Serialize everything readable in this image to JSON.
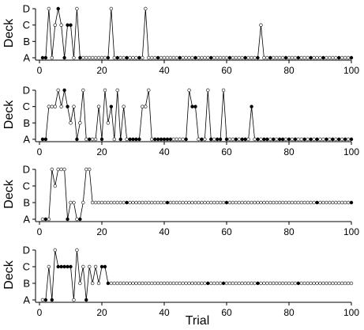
{
  "chart_data": [
    {
      "type": "line",
      "ylabel": "Deck",
      "xlabel": "",
      "xlim": [
        0,
        100
      ],
      "xticks": [
        0,
        20,
        40,
        60,
        80,
        100
      ],
      "y_categories": [
        "A",
        "B",
        "C",
        "D"
      ],
      "x": [
        1,
        2,
        3,
        4,
        5,
        6,
        7,
        8,
        9,
        10,
        11,
        12,
        13,
        14,
        15,
        16,
        17,
        18,
        19,
        20,
        21,
        22,
        23,
        24,
        25,
        26,
        27,
        28,
        29,
        30,
        31,
        32,
        33,
        34,
        35,
        36,
        37,
        38,
        39,
        40,
        41,
        42,
        43,
        44,
        45,
        46,
        47,
        48,
        49,
        50,
        51,
        52,
        53,
        54,
        55,
        56,
        57,
        58,
        59,
        60,
        61,
        62,
        63,
        64,
        65,
        66,
        67,
        68,
        69,
        70,
        71,
        72,
        73,
        74,
        75,
        76,
        77,
        78,
        79,
        80,
        81,
        82,
        83,
        84,
        85,
        86,
        87,
        88,
        89,
        90,
        91,
        92,
        93,
        94,
        95,
        96,
        97,
        98,
        99,
        100
      ],
      "deck": [
        "A",
        "A",
        "D",
        "A",
        "C",
        "D",
        "C",
        "A",
        "C",
        "C",
        "A",
        "D",
        "A",
        "A",
        "A",
        "A",
        "A",
        "A",
        "A",
        "A",
        "A",
        "A",
        "D",
        "A",
        "A",
        "A",
        "A",
        "A",
        "A",
        "A",
        "A",
        "A",
        "A",
        "D",
        "A",
        "A",
        "A",
        "A",
        "A",
        "A",
        "A",
        "A",
        "A",
        "A",
        "A",
        "A",
        "A",
        "A",
        "A",
        "A",
        "A",
        "A",
        "A",
        "A",
        "A",
        "A",
        "A",
        "A",
        "A",
        "A",
        "A",
        "A",
        "A",
        "A",
        "A",
        "A",
        "A",
        "A",
        "A",
        "A",
        "C",
        "A",
        "A",
        "A",
        "A",
        "A",
        "A",
        "A",
        "A",
        "A",
        "A",
        "A",
        "A",
        "A",
        "A",
        "A",
        "A",
        "A",
        "A",
        "A",
        "A",
        "A",
        "A",
        "A",
        "A",
        "A",
        "A",
        "A",
        "A",
        "A"
      ],
      "reward": [
        1,
        1,
        0,
        0,
        0,
        1,
        0,
        1,
        1,
        1,
        0,
        0,
        1,
        0,
        0,
        0,
        0,
        0,
        0,
        0,
        0,
        1,
        0,
        0,
        1,
        0,
        0,
        1,
        0,
        0,
        0,
        1,
        0,
        0,
        0,
        0,
        0,
        1,
        0,
        0,
        0,
        0,
        0,
        0,
        1,
        0,
        0,
        0,
        0,
        1,
        0,
        0,
        0,
        0,
        1,
        0,
        0,
        0,
        0,
        0,
        1,
        0,
        0,
        0,
        0,
        1,
        0,
        0,
        0,
        1,
        0,
        0,
        0,
        1,
        0,
        0,
        0,
        0,
        1,
        0,
        0,
        0,
        1,
        0,
        0,
        0,
        1,
        0,
        0,
        0,
        1,
        0,
        0,
        0,
        0,
        1,
        0,
        0,
        0,
        1
      ]
    },
    {
      "type": "line",
      "ylabel": "Deck",
      "xlabel": "",
      "xlim": [
        0,
        100
      ],
      "xticks": [
        0,
        20,
        40,
        60,
        80,
        100
      ],
      "y_categories": [
        "A",
        "B",
        "C",
        "D"
      ],
      "x": [
        1,
        2,
        3,
        4,
        5,
        6,
        7,
        8,
        9,
        10,
        11,
        12,
        13,
        14,
        15,
        16,
        17,
        18,
        19,
        20,
        21,
        22,
        23,
        24,
        25,
        26,
        27,
        28,
        29,
        30,
        31,
        32,
        33,
        34,
        35,
        36,
        37,
        38,
        39,
        40,
        41,
        42,
        43,
        44,
        45,
        46,
        47,
        48,
        49,
        50,
        51,
        52,
        53,
        54,
        55,
        56,
        57,
        58,
        59,
        60,
        61,
        62,
        63,
        64,
        65,
        66,
        67,
        68,
        69,
        70,
        71,
        72,
        73,
        74,
        75,
        76,
        77,
        78,
        79,
        80,
        81,
        82,
        83,
        84,
        85,
        86,
        87,
        88,
        89,
        90,
        91,
        92,
        93,
        94,
        95,
        96,
        97,
        98,
        99,
        100
      ],
      "deck": [
        "A",
        "A",
        "C",
        "C",
        "C",
        "D",
        "C",
        "D",
        "C",
        "B",
        "C",
        "A",
        "B",
        "D",
        "A",
        "A",
        "A",
        "A",
        "C",
        "A",
        "D",
        "B",
        "C",
        "A",
        "D",
        "A",
        "C",
        "A",
        "A",
        "A",
        "A",
        "A",
        "C",
        "C",
        "D",
        "A",
        "A",
        "A",
        "A",
        "A",
        "A",
        "A",
        "A",
        "A",
        "A",
        "A",
        "A",
        "D",
        "C",
        "C",
        "A",
        "A",
        "A",
        "D",
        "A",
        "A",
        "A",
        "A",
        "D",
        "A",
        "A",
        "A",
        "A",
        "A",
        "A",
        "A",
        "A",
        "C",
        "A",
        "A",
        "A",
        "A",
        "A",
        "A",
        "A",
        "A",
        "A",
        "A",
        "A",
        "A",
        "A",
        "A",
        "A",
        "A",
        "A",
        "A",
        "A",
        "A",
        "A",
        "A",
        "A",
        "A",
        "A",
        "A",
        "A",
        "A",
        "A",
        "A",
        "A",
        "A"
      ],
      "reward": [
        1,
        1,
        0,
        0,
        0,
        0,
        0,
        1,
        1,
        0,
        0,
        1,
        0,
        0,
        0,
        1,
        0,
        0,
        0,
        1,
        0,
        0,
        1,
        0,
        0,
        1,
        0,
        0,
        1,
        1,
        1,
        1,
        0,
        0,
        0,
        0,
        1,
        1,
        1,
        1,
        1,
        1,
        0,
        0,
        0,
        0,
        1,
        0,
        1,
        1,
        0,
        1,
        0,
        0,
        1,
        0,
        1,
        1,
        0,
        1,
        0,
        0,
        1,
        0,
        1,
        1,
        0,
        1,
        0,
        1,
        0,
        1,
        1,
        0,
        1,
        0,
        1,
        1,
        0,
        1,
        0,
        1,
        0,
        0,
        1,
        0,
        1,
        0,
        1,
        0,
        0,
        1,
        0,
        1,
        0,
        1,
        0,
        1,
        0,
        1
      ]
    },
    {
      "type": "line",
      "ylabel": "Deck",
      "xlabel": "",
      "xlim": [
        0,
        100
      ],
      "xticks": [
        0,
        20,
        40,
        60,
        80,
        100
      ],
      "y_categories": [
        "A",
        "B",
        "C",
        "D"
      ],
      "x": [
        1,
        2,
        3,
        4,
        5,
        6,
        7,
        8,
        9,
        10,
        11,
        12,
        13,
        14,
        15,
        16,
        17,
        18,
        19,
        20,
        21,
        22,
        23,
        24,
        25,
        26,
        27,
        28,
        29,
        30,
        31,
        32,
        33,
        34,
        35,
        36,
        37,
        38,
        39,
        40,
        41,
        42,
        43,
        44,
        45,
        46,
        47,
        48,
        49,
        50,
        51,
        52,
        53,
        54,
        55,
        56,
        57,
        58,
        59,
        60,
        61,
        62,
        63,
        64,
        65,
        66,
        67,
        68,
        69,
        70,
        71,
        72,
        73,
        74,
        75,
        76,
        77,
        78,
        79,
        80,
        81,
        82,
        83,
        84,
        85,
        86,
        87,
        88,
        89,
        90,
        91,
        92,
        93,
        94,
        95,
        96,
        97,
        98,
        99,
        100
      ],
      "deck": [
        "A",
        "A",
        "A",
        "D",
        "C",
        "D",
        "D",
        "D",
        "A",
        "B",
        "B",
        "A",
        "A",
        "B",
        "D",
        "D",
        "B",
        "B",
        "B",
        "B",
        "B",
        "B",
        "B",
        "B",
        "B",
        "B",
        "B",
        "B",
        "B",
        "B",
        "B",
        "B",
        "B",
        "B",
        "B",
        "B",
        "B",
        "B",
        "B",
        "B",
        "B",
        "B",
        "B",
        "B",
        "B",
        "B",
        "B",
        "B",
        "B",
        "B",
        "B",
        "B",
        "B",
        "B",
        "B",
        "B",
        "B",
        "B",
        "B",
        "B",
        "B",
        "B",
        "B",
        "B",
        "B",
        "B",
        "B",
        "B",
        "B",
        "B",
        "B",
        "B",
        "B",
        "B",
        "B",
        "B",
        "B",
        "B",
        "B",
        "B",
        "B",
        "B",
        "B",
        "B",
        "B",
        "B",
        "B",
        "B",
        "B",
        "B",
        "B",
        "B",
        "B",
        "B",
        "B",
        "B",
        "B",
        "B",
        "B",
        "B"
      ],
      "reward": [
        0,
        1,
        0,
        0,
        0,
        0,
        0,
        0,
        1,
        0,
        0,
        0,
        1,
        0,
        0,
        0,
        0,
        0,
        0,
        0,
        0,
        0,
        0,
        0,
        0,
        0,
        0,
        1,
        0,
        0,
        0,
        0,
        0,
        0,
        0,
        0,
        0,
        0,
        0,
        0,
        1,
        0,
        0,
        0,
        0,
        0,
        0,
        0,
        0,
        0,
        0,
        0,
        0,
        0,
        0,
        0,
        0,
        0,
        0,
        1,
        0,
        0,
        0,
        0,
        0,
        0,
        0,
        0,
        0,
        0,
        0,
        0,
        0,
        0,
        0,
        0,
        0,
        0,
        0,
        0,
        0,
        0,
        0,
        0,
        0,
        0,
        0,
        0,
        1,
        0,
        0,
        0,
        0,
        0,
        0,
        0,
        0,
        0,
        0,
        1
      ]
    },
    {
      "type": "line",
      "ylabel": "Deck",
      "xlabel": "Trial",
      "xlim": [
        0,
        100
      ],
      "xticks": [
        0,
        20,
        40,
        60,
        80,
        100
      ],
      "y_categories": [
        "A",
        "B",
        "C",
        "D"
      ],
      "x": [
        1,
        2,
        3,
        4,
        5,
        6,
        7,
        8,
        9,
        10,
        11,
        12,
        13,
        14,
        15,
        16,
        17,
        18,
        19,
        20,
        21,
        22,
        23,
        24,
        25,
        26,
        27,
        28,
        29,
        30,
        31,
        32,
        33,
        34,
        35,
        36,
        37,
        38,
        39,
        40,
        41,
        42,
        43,
        44,
        45,
        46,
        47,
        48,
        49,
        50,
        51,
        52,
        53,
        54,
        55,
        56,
        57,
        58,
        59,
        60,
        61,
        62,
        63,
        64,
        65,
        66,
        67,
        68,
        69,
        70,
        71,
        72,
        73,
        74,
        75,
        76,
        77,
        78,
        79,
        80,
        81,
        82,
        83,
        84,
        85,
        86,
        87,
        88,
        89,
        90,
        91,
        92,
        93,
        94,
        95,
        96,
        97,
        98,
        99,
        100
      ],
      "deck": [
        "A",
        "A",
        "C",
        "A",
        "D",
        "C",
        "C",
        "C",
        "C",
        "C",
        "A",
        "D",
        "B",
        "C",
        "A",
        "C",
        "B",
        "C",
        "B",
        "C",
        "C",
        "B",
        "B",
        "B",
        "B",
        "B",
        "B",
        "B",
        "B",
        "B",
        "B",
        "B",
        "B",
        "B",
        "B",
        "B",
        "B",
        "B",
        "B",
        "B",
        "B",
        "B",
        "B",
        "B",
        "B",
        "B",
        "B",
        "B",
        "B",
        "B",
        "B",
        "B",
        "B",
        "B",
        "B",
        "B",
        "B",
        "B",
        "B",
        "B",
        "B",
        "B",
        "B",
        "B",
        "B",
        "B",
        "B",
        "B",
        "B",
        "B",
        "B",
        "B",
        "B",
        "B",
        "B",
        "B",
        "B",
        "B",
        "B",
        "B",
        "B",
        "B",
        "B",
        "B",
        "B",
        "B",
        "B",
        "B",
        "B",
        "B",
        "B",
        "B",
        "B",
        "B",
        "B",
        "B",
        "B",
        "B",
        "B",
        "B"
      ],
      "reward": [
        0,
        1,
        0,
        1,
        0,
        1,
        1,
        1,
        1,
        1,
        0,
        0,
        0,
        0,
        1,
        0,
        0,
        0,
        0,
        1,
        1,
        1,
        0,
        0,
        0,
        0,
        0,
        0,
        0,
        0,
        0,
        0,
        0,
        0,
        0,
        0,
        0,
        0,
        0,
        0,
        0,
        0,
        0,
        0,
        0,
        0,
        0,
        0,
        0,
        0,
        0,
        0,
        0,
        1,
        0,
        0,
        0,
        0,
        1,
        0,
        0,
        0,
        0,
        0,
        0,
        0,
        0,
        0,
        0,
        1,
        0,
        0,
        0,
        0,
        0,
        0,
        0,
        0,
        0,
        0,
        0,
        0,
        1,
        0,
        0,
        0,
        0,
        0,
        0,
        0,
        0,
        0,
        0,
        0,
        0,
        0,
        0,
        0,
        0,
        0
      ]
    }
  ]
}
